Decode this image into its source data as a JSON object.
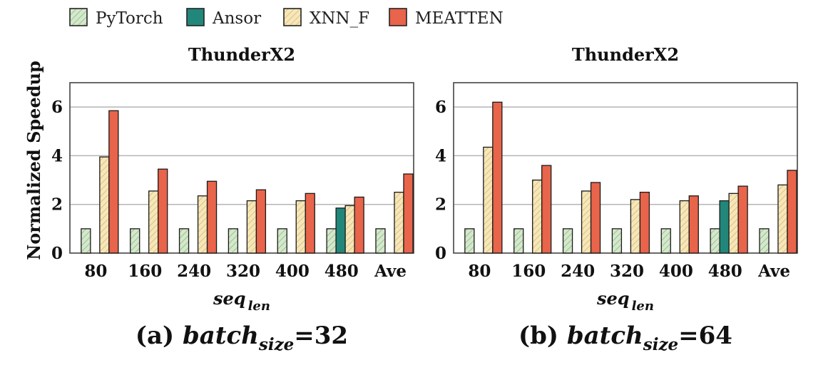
{
  "legend": [
    {
      "name": "PyTorch",
      "color": "#d4e8cc",
      "hatch": true
    },
    {
      "name": "Ansor",
      "color": "#21877a",
      "hatch": false
    },
    {
      "name": "XNN_F",
      "color": "#f7e6b8",
      "hatch": true
    },
    {
      "name": "MEATTEN",
      "color": "#e8644a",
      "hatch": false
    }
  ],
  "ylabel": "Normalized Speedup",
  "chart_data": [
    {
      "type": "bar",
      "title": "ThunderX2",
      "caption": {
        "prefix": "(a) ",
        "italic": "batch",
        "sub": "size",
        "suffix": "=32"
      },
      "xlabel": {
        "main": "seq",
        "sub": "len"
      },
      "ylabel": "Normalized Speedup",
      "ylim": [
        0,
        7
      ],
      "yticks": [
        0,
        2,
        4,
        6
      ],
      "categories": [
        "80",
        "160",
        "240",
        "320",
        "400",
        "480",
        "Ave"
      ],
      "series": [
        {
          "name": "PyTorch",
          "values": [
            1,
            1,
            1,
            1,
            1,
            1,
            1
          ]
        },
        {
          "name": "Ansor",
          "values": [
            null,
            null,
            null,
            null,
            null,
            1.85,
            null
          ]
        },
        {
          "name": "XNN_F",
          "values": [
            3.95,
            2.55,
            2.35,
            2.15,
            2.15,
            1.95,
            2.5
          ]
        },
        {
          "name": "MEATTEN",
          "values": [
            5.85,
            3.45,
            2.95,
            2.6,
            2.45,
            2.3,
            3.25
          ]
        }
      ]
    },
    {
      "type": "bar",
      "title": "ThunderX2",
      "caption": {
        "prefix": "(b) ",
        "italic": "batch",
        "sub": "size",
        "suffix": "=64"
      },
      "xlabel": {
        "main": "seq",
        "sub": "len"
      },
      "ylabel": "",
      "ylim": [
        0,
        7
      ],
      "yticks": [
        0,
        2,
        4,
        6
      ],
      "categories": [
        "80",
        "160",
        "240",
        "320",
        "400",
        "480",
        "Ave"
      ],
      "series": [
        {
          "name": "PyTorch",
          "values": [
            1,
            1,
            1,
            1,
            1,
            1,
            1
          ]
        },
        {
          "name": "Ansor",
          "values": [
            null,
            null,
            null,
            null,
            null,
            2.15,
            null
          ]
        },
        {
          "name": "XNN_F",
          "values": [
            4.35,
            3.0,
            2.55,
            2.2,
            2.15,
            2.45,
            2.8
          ]
        },
        {
          "name": "MEATTEN",
          "values": [
            6.2,
            3.6,
            2.9,
            2.5,
            2.35,
            2.75,
            3.4
          ]
        }
      ]
    }
  ]
}
